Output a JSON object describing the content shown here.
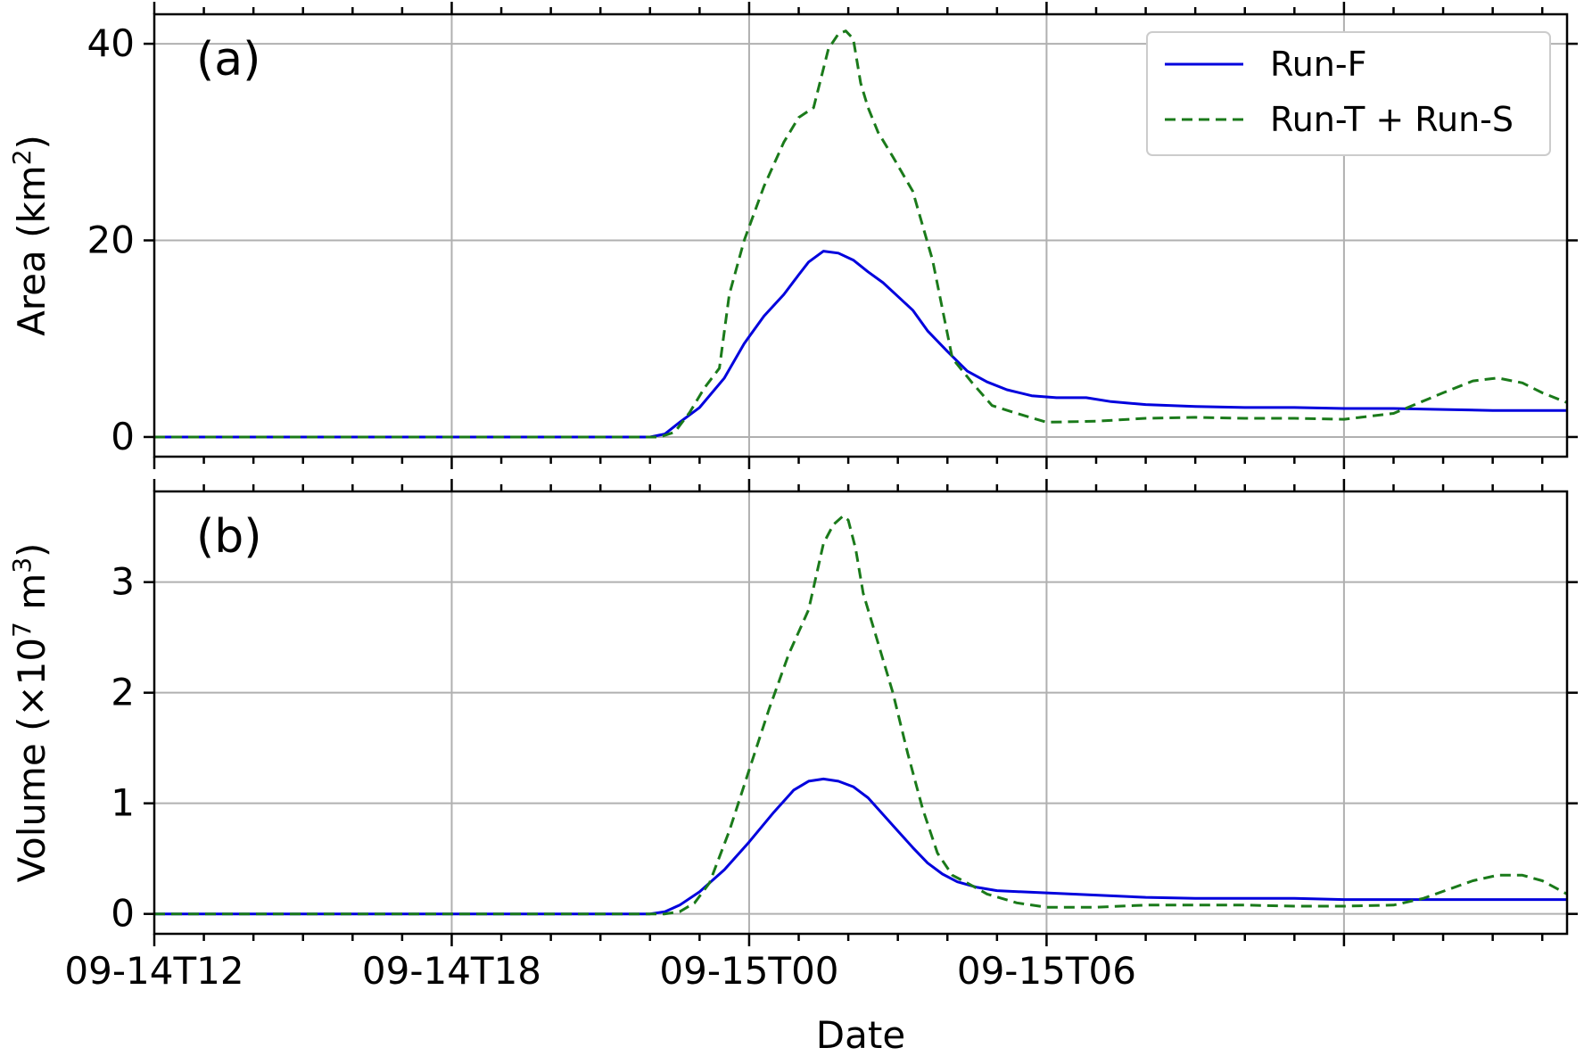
{
  "chart_data": [
    {
      "type": "line",
      "panel_label": "(a)",
      "ylabel": "Area (km",
      "ylabel_sup": "2",
      "ylabel_suffix": ")",
      "xlabel": "",
      "yticks": [
        0,
        20,
        40
      ],
      "ylim": [
        -2,
        43
      ],
      "xlim_hours": [
        0,
        28.5
      ],
      "grid": true,
      "legend_position": "top-right",
      "series": [
        {
          "name": "Run-F",
          "color": "#0000dd",
          "dash": "solid",
          "x": [
            0,
            10.0,
            10.3,
            10.6,
            11.0,
            11.5,
            11.9,
            12.3,
            12.7,
            13.0,
            13.2,
            13.5,
            13.8,
            14.1,
            14.4,
            14.7,
            15.0,
            15.3,
            15.6,
            16.0,
            16.4,
            16.8,
            17.2,
            17.7,
            18.2,
            18.8,
            19.3,
            20.0,
            21.0,
            22.0,
            23.0,
            24.0,
            25.0,
            26.0,
            27.0,
            28.5
          ],
          "y": [
            0,
            0,
            0.3,
            1.5,
            3.0,
            6.0,
            9.5,
            12.3,
            14.5,
            16.5,
            17.8,
            18.9,
            18.7,
            18.0,
            16.8,
            15.7,
            14.3,
            12.9,
            10.8,
            8.7,
            6.7,
            5.6,
            4.8,
            4.2,
            4.0,
            4.0,
            3.6,
            3.3,
            3.1,
            3.0,
            3.0,
            2.9,
            2.9,
            2.8,
            2.7,
            2.7
          ]
        },
        {
          "name": "Run-T + Run-S",
          "color": "#1a7a1a",
          "dash": "dashed",
          "x": [
            0,
            10.2,
            10.5,
            10.8,
            11.1,
            11.4,
            11.6,
            11.9,
            12.3,
            12.7,
            13.0,
            13.3,
            13.6,
            13.8,
            13.95,
            14.1,
            14.25,
            14.4,
            14.6,
            14.9,
            15.3,
            15.7,
            16.1,
            16.5,
            16.9,
            17.4,
            18.0,
            19.0,
            20.0,
            21.0,
            22.0,
            23.0,
            24.0,
            25.0,
            26.0,
            26.6,
            27.1,
            27.6,
            28.0,
            28.5
          ],
          "y": [
            0,
            0,
            0.5,
            2.5,
            5.0,
            7.0,
            14.5,
            20.0,
            25.5,
            30.0,
            32.5,
            33.5,
            39.5,
            41.0,
            41.3,
            40.5,
            36.0,
            33.5,
            31.0,
            28.5,
            25.0,
            18.0,
            8.0,
            5.5,
            3.2,
            2.4,
            1.5,
            1.6,
            1.9,
            2.0,
            1.9,
            1.9,
            1.8,
            2.4,
            4.5,
            5.7,
            6.0,
            5.5,
            4.5,
            3.5
          ]
        }
      ]
    },
    {
      "type": "line",
      "panel_label": "(b)",
      "ylabel": "Volume (×10",
      "ylabel_sup": "7",
      "ylabel_suffix": " m",
      "ylabel_sup2": "3",
      "ylabel_suffix2": ")",
      "xlabel": "Date",
      "yticks": [
        0,
        1,
        2,
        3
      ],
      "ylim": [
        -0.18,
        3.82
      ],
      "xlim_hours": [
        0,
        28.5
      ],
      "xtick_hours": [
        0,
        6,
        12,
        18
      ],
      "xtick_labels": [
        "09-14T12",
        "09-14T18",
        "09-15T00",
        "09-15T06"
      ],
      "grid": true,
      "series": [
        {
          "name": "Run-F",
          "color": "#0000dd",
          "dash": "solid",
          "x": [
            0,
            10.0,
            10.3,
            10.6,
            11.0,
            11.5,
            12.0,
            12.5,
            12.9,
            13.2,
            13.5,
            13.8,
            14.1,
            14.4,
            14.7,
            15.0,
            15.3,
            15.6,
            15.9,
            16.2,
            16.6,
            17.0,
            17.5,
            18.0,
            19.0,
            20.0,
            21.0,
            22.0,
            23.0,
            24.0,
            25.0,
            26.0,
            27.0,
            28.5
          ],
          "y": [
            0,
            0,
            0.02,
            0.08,
            0.2,
            0.4,
            0.65,
            0.92,
            1.12,
            1.2,
            1.22,
            1.2,
            1.15,
            1.05,
            0.9,
            0.75,
            0.6,
            0.46,
            0.36,
            0.29,
            0.24,
            0.21,
            0.2,
            0.19,
            0.17,
            0.15,
            0.14,
            0.14,
            0.14,
            0.13,
            0.13,
            0.13,
            0.13,
            0.13
          ]
        },
        {
          "name": "Run-T + Run-S",
          "color": "#1a7a1a",
          "dash": "dashed",
          "x": [
            0,
            10.3,
            10.6,
            10.9,
            11.2,
            11.6,
            12.0,
            12.4,
            12.8,
            13.2,
            13.5,
            13.7,
            13.9,
            14.0,
            14.15,
            14.3,
            14.6,
            14.9,
            15.2,
            15.5,
            15.8,
            16.1,
            16.4,
            16.8,
            17.4,
            18.0,
            19.0,
            20.0,
            21.0,
            22.0,
            23.0,
            24.0,
            25.0,
            25.6,
            26.1,
            26.6,
            27.1,
            27.6,
            28.0,
            28.5
          ],
          "y": [
            0,
            0,
            0.02,
            0.1,
            0.28,
            0.75,
            1.3,
            1.85,
            2.35,
            2.75,
            3.35,
            3.52,
            3.6,
            3.56,
            3.3,
            2.9,
            2.45,
            2.0,
            1.45,
            0.95,
            0.55,
            0.35,
            0.28,
            0.18,
            0.1,
            0.06,
            0.06,
            0.08,
            0.08,
            0.08,
            0.07,
            0.07,
            0.08,
            0.14,
            0.22,
            0.3,
            0.35,
            0.35,
            0.3,
            0.18
          ]
        }
      ]
    }
  ]
}
